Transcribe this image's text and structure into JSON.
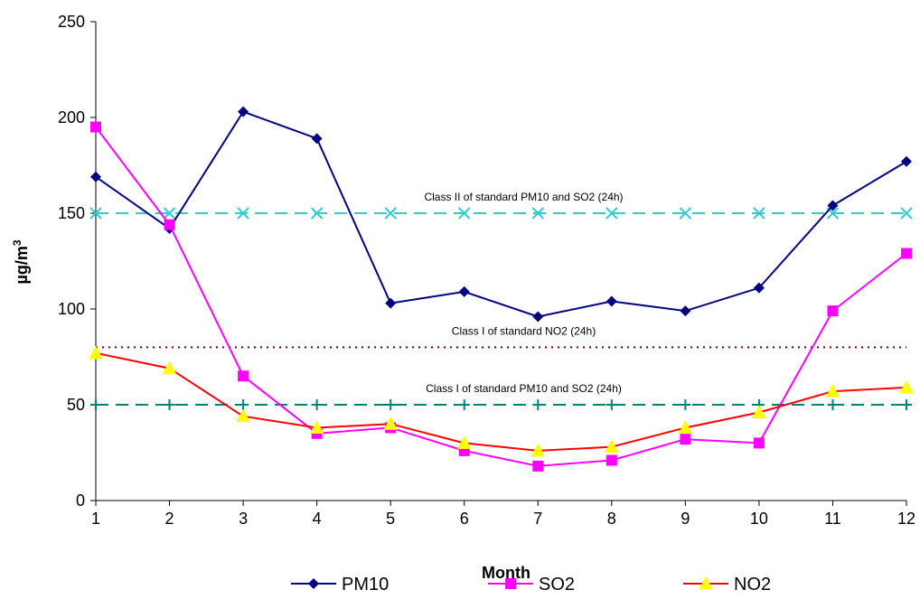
{
  "chart_data": {
    "type": "line",
    "xlabel": "Month",
    "ylabel": "µg/m",
    "ylabel_superscript": "3",
    "ylim": [
      0,
      250
    ],
    "yticks": [
      0,
      50,
      100,
      150,
      200,
      250
    ],
    "grid": false,
    "legend_position": "bottom",
    "x": [
      1,
      2,
      3,
      4,
      5,
      6,
      7,
      8,
      9,
      10,
      11,
      12
    ],
    "series": [
      {
        "name": "PM10",
        "color": "#000080",
        "marker": "diamond",
        "values": [
          169,
          142,
          203,
          189,
          103,
          109,
          96,
          104,
          99,
          111,
          154,
          177
        ]
      },
      {
        "name": "SO2",
        "color": "#ff00ff",
        "marker": "square",
        "values": [
          195,
          144,
          65,
          35,
          38,
          26,
          18,
          21,
          32,
          30,
          99,
          129
        ]
      },
      {
        "name": "NO2",
        "color": "#ff0000",
        "marker": "triangle",
        "marker_fill": "#ffff00",
        "values": [
          77,
          69,
          44,
          38,
          40,
          30,
          26,
          28,
          38,
          46,
          57,
          59
        ]
      }
    ],
    "reference_lines": [
      {
        "label": "Class II of standard PM10 and SO2 (24h)",
        "value": 150,
        "color": "#33cccc",
        "style": "dashed",
        "marker": "x"
      },
      {
        "label": "Class I of standard NO2 (24h)",
        "value": 80,
        "color": "#800000",
        "style": "dotted",
        "marker": "none"
      },
      {
        "label": "Class I of standard PM10 and SO2 (24h)",
        "value": 50,
        "color": "#008080",
        "style": "dashed",
        "marker": "plus"
      }
    ]
  }
}
